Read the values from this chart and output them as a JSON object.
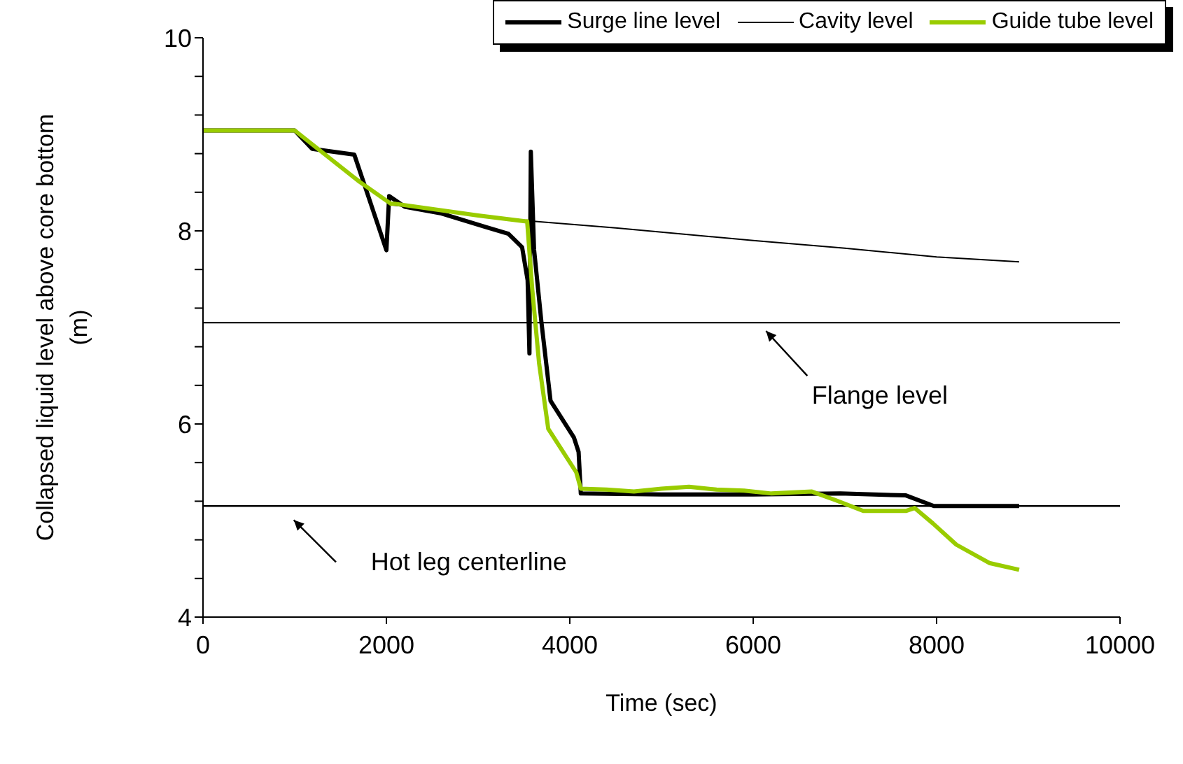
{
  "chart_data": {
    "type": "line",
    "xlabel": "Time (sec)",
    "ylabel": "Collapsed liquid level above core bottom (m)",
    "xlim": [
      0,
      10000
    ],
    "xticks": [
      0,
      2000,
      4000,
      6000,
      8000,
      10000
    ],
    "ylim": [
      4,
      10
    ],
    "yticks": [
      4,
      {
        "value": 4.4,
        "label": null
      },
      {
        "value": 4.8,
        "label": null
      },
      {
        "value": 5.2,
        "label": null
      },
      {
        "value": 5.6,
        "label": null
      },
      6,
      {
        "value": 6.4,
        "label": null
      },
      {
        "value": 6.8,
        "label": null
      },
      {
        "value": 7.2,
        "label": null
      },
      {
        "value": 7.6,
        "label": null
      },
      8,
      {
        "value": 8.4,
        "label": null
      },
      {
        "value": 8.8,
        "label": null
      },
      {
        "value": 9.2,
        "label": null
      },
      {
        "value": 9.6,
        "label": null
      },
      10
    ],
    "legend": "top right",
    "marker": "none",
    "line_style": "solid",
    "ref_lines": [
      {
        "axis": "y",
        "value": 7.05,
        "label": "Flange level",
        "color": "#000000"
      },
      {
        "axis": "y",
        "value": 5.15,
        "label": "Hot leg centerline",
        "color": "#000000"
      }
    ],
    "series": [
      {
        "name": "Surge line level",
        "color": "#000000",
        "x": [
          0,
          1000,
          1190,
          1650,
          2000,
          2030,
          2200,
          2600,
          3080,
          3330,
          3480,
          3540,
          3560,
          3575,
          3610,
          3690,
          3790,
          4045,
          4096,
          4120,
          5000,
          6000,
          6950,
          7665,
          7970,
          8900
        ],
        "values": [
          9.04,
          9.04,
          8.85,
          8.79,
          7.8,
          8.36,
          8.25,
          8.18,
          8.04,
          7.97,
          7.83,
          7.49,
          6.73,
          8.82,
          7.81,
          7.06,
          6.24,
          5.86,
          5.71,
          5.28,
          5.27,
          5.27,
          5.28,
          5.26,
          5.15,
          5.15
        ]
      },
      {
        "name": "Cavity level",
        "color": "#000000",
        "x": [
          0,
          1000,
          2050,
          3600,
          4500,
          6000,
          7000,
          8000,
          8900
        ],
        "values": [
          9.04,
          9.04,
          8.27,
          8.1,
          8.03,
          7.9,
          7.82,
          7.73,
          7.68
        ]
      },
      {
        "name": "Guide tube level",
        "color": "#99cc00",
        "x": [
          0,
          1000,
          1705,
          2050,
          2100,
          3000,
          3510,
          3535,
          3590,
          3665,
          3765,
          4070,
          4120,
          4400,
          4700,
          5000,
          5300,
          5600,
          5900,
          6200,
          6640,
          6900,
          7200,
          7500,
          7670,
          7760,
          7960,
          8215,
          8575,
          8900
        ],
        "values": [
          9.04,
          9.04,
          8.51,
          8.28,
          8.28,
          8.16,
          8.1,
          8.1,
          7.4,
          6.63,
          5.95,
          5.5,
          5.33,
          5.32,
          5.3,
          5.33,
          5.35,
          5.32,
          5.31,
          5.28,
          5.3,
          5.21,
          5.1,
          5.1,
          5.1,
          5.13,
          4.97,
          4.75,
          4.56,
          4.49
        ]
      }
    ]
  }
}
